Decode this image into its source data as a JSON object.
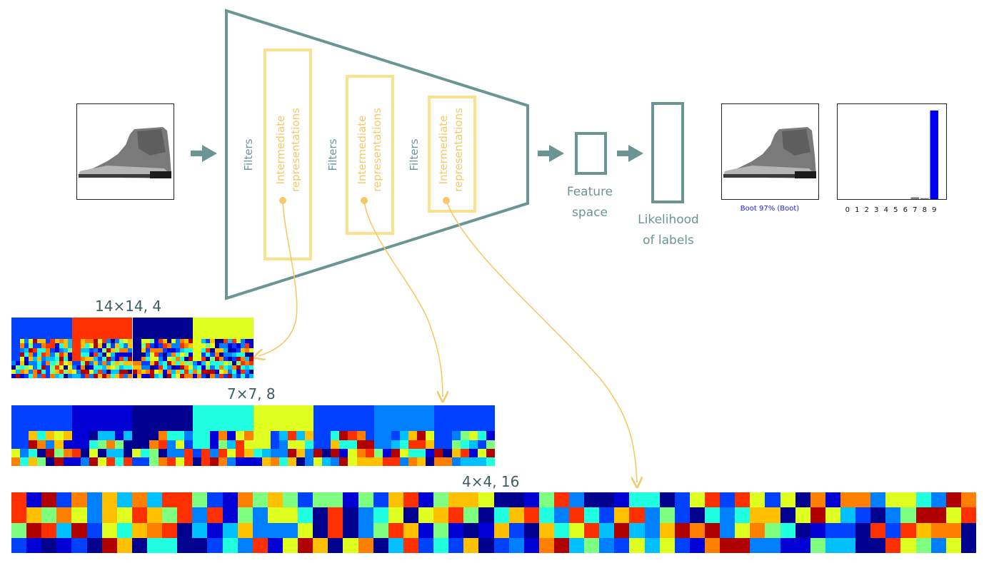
{
  "colors": {
    "teal": "#6b9595",
    "teal_text": "#3c5e5e",
    "amber": "#fbe08d",
    "amber_dark": "#f6c86a",
    "prediction_blue": "#0000ee"
  },
  "network": {
    "filters_label": "Filters",
    "intermediate_label": "Intermediate representations",
    "feature_label": [
      "Feature",
      "space"
    ],
    "likelihood_label": [
      "Likelihood",
      "of labels"
    ]
  },
  "prediction": {
    "caption": "Boot 97% (Boot)",
    "ticks": [
      "0",
      "1",
      "2",
      "3",
      "4",
      "5",
      "6",
      "7",
      "8",
      "9"
    ]
  },
  "chart_data": {
    "type": "bar",
    "categories": [
      "0",
      "1",
      "2",
      "3",
      "4",
      "5",
      "6",
      "7",
      "8",
      "9"
    ],
    "values": [
      0,
      0,
      0,
      0,
      0,
      0,
      0,
      0.02,
      0.01,
      0.97
    ],
    "ylim": [
      0,
      1
    ]
  },
  "maps": {
    "conv1_label": "14×14, 4",
    "conv2_label": "7×7, 8",
    "conv3_label": "4×4, 16"
  }
}
